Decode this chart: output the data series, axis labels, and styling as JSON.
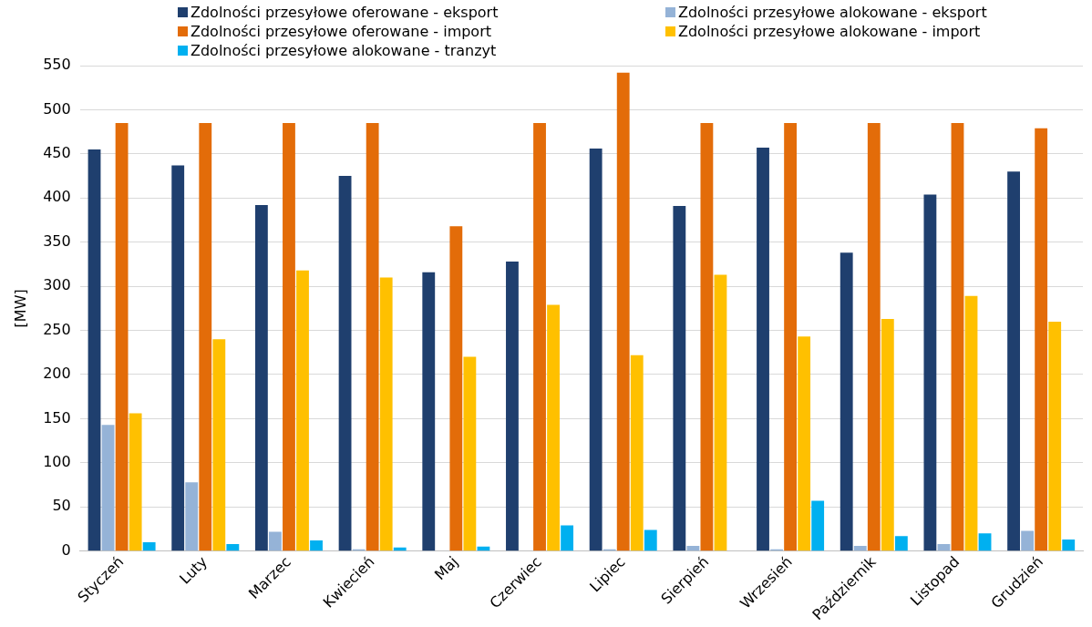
{
  "chart_data": {
    "type": "bar",
    "ylabel": "[MW]",
    "categories": [
      "Styczeń",
      "Luty",
      "Marzec",
      "Kwiecień",
      "Maj",
      "Czerwiec",
      "Lipiec",
      "Sierpień",
      "Wrzesień",
      "Październik",
      "Listopad",
      "Grudzień"
    ],
    "series": [
      {
        "name": "Zdolności przesyłowe oferowane - eksport",
        "color": "#1f3f6e",
        "values": [
          455,
          437,
          392,
          425,
          316,
          328,
          456,
          391,
          457,
          338,
          404,
          430
        ]
      },
      {
        "name": "Zdolności przesyłowe alokowane - eksport",
        "color": "#95b3d7",
        "values": [
          143,
          78,
          22,
          2,
          0,
          0,
          2,
          6,
          2,
          6,
          8,
          23
        ]
      },
      {
        "name": "Zdolności przesyłowe oferowane - import",
        "color": "#e36c09",
        "values": [
          485,
          485,
          485,
          485,
          368,
          485,
          542,
          485,
          485,
          485,
          485,
          479
        ]
      },
      {
        "name": "Zdolności przesyłowe alokowane - import",
        "color": "#ffc000",
        "values": [
          156,
          240,
          318,
          310,
          220,
          279,
          222,
          313,
          243,
          263,
          289,
          260
        ]
      },
      {
        "name": "Zdolności przesyłowe alokowane - tranzyt",
        "color": "#00b0f0",
        "values": [
          10,
          8,
          12,
          4,
          5,
          29,
          24,
          0,
          57,
          17,
          20,
          13
        ]
      }
    ],
    "ylim": [
      0,
      550
    ],
    "yticks": [
      0,
      50,
      100,
      150,
      200,
      250,
      300,
      350,
      400,
      450,
      500,
      550
    ],
    "grid": "y",
    "legend": "top"
  }
}
